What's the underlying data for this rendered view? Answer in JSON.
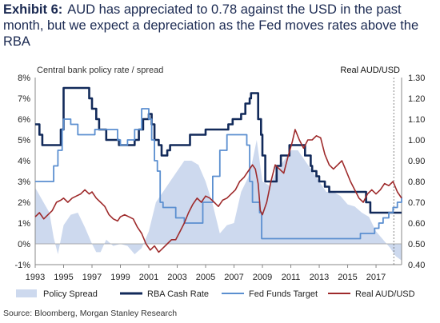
{
  "header": {
    "exhibit": "Exhibit 6:",
    "title": "AUD has appreciated to 0.78 against the USD in the past month, but we expect a depreciation as the Fed moves rates above the RBA"
  },
  "source": "Source: Bloomberg, Morgan Stanley Research",
  "chart_data": {
    "type": "line",
    "ylabel_left": "Central bank policy rate / spread",
    "ylabel_right": "Real AUD/USD",
    "x_ticks": [
      "1993",
      "1995",
      "1997",
      "1999",
      "2001",
      "2003",
      "2005",
      "2007",
      "2009",
      "2011",
      "2013",
      "2015",
      "2017"
    ],
    "xlim": [
      1993,
      2018.8
    ],
    "ylim_left": [
      -1,
      8
    ],
    "ylim_right": [
      0.4,
      1.3
    ],
    "y_ticks_left": [
      "8%",
      "7%",
      "6%",
      "5%",
      "4%",
      "3%",
      "2%",
      "1%",
      "0%",
      "-1%"
    ],
    "y_ticks_right": [
      "1.30",
      "1.20",
      "1.10",
      "1.00",
      "0.90",
      "0.80",
      "0.70",
      "0.60",
      "0.50",
      "0.40"
    ],
    "legend": [
      "Policy Spread",
      "RBA Cash Rate",
      "Fed Funds Target",
      "Real AUD/USD"
    ],
    "legend_position": "bottom",
    "colors": {
      "policy_spread": "#cdd9ee",
      "rba_cash_rate": "#122a5a",
      "fed_funds": "#5b8fd0",
      "real_aud": "#9e2a2b"
    },
    "series": [
      {
        "name": "Policy Spread",
        "axis": "left",
        "style": "area",
        "x": [
          1993.0,
          1993.5,
          1994.0,
          1994.3,
          1994.6,
          1995.0,
          1995.5,
          1996.0,
          1996.5,
          1997.0,
          1997.3,
          1997.6,
          1998.0,
          1998.5,
          1999.0,
          1999.5,
          2000.0,
          2000.5,
          2001.0,
          2001.5,
          2002.0,
          2002.5,
          2003.0,
          2003.5,
          2004.0,
          2004.5,
          2005.0,
          2005.5,
          2006.0,
          2006.5,
          2007.0,
          2007.5,
          2008.0,
          2008.3,
          2008.6,
          2009.0,
          2009.5,
          2010.0,
          2010.5,
          2011.0,
          2011.5,
          2012.0,
          2012.5,
          2013.0,
          2013.5,
          2014.0,
          2014.5,
          2015.0,
          2015.5,
          2016.0,
          2016.5,
          2017.0,
          2017.5,
          2018.0,
          2018.4,
          2018.8
        ],
        "values": [
          2.7,
          2.1,
          1.5,
          0.3,
          -0.5,
          0.9,
          1.4,
          1.5,
          0.8,
          0.0,
          -0.4,
          -0.4,
          0.2,
          -0.1,
          0.0,
          -0.1,
          -0.5,
          -0.2,
          0.6,
          2.0,
          2.5,
          3.0,
          3.5,
          4.0,
          4.0,
          3.8,
          3.0,
          1.9,
          0.5,
          0.9,
          1.0,
          2.5,
          3.2,
          4.0,
          5.0,
          3.0,
          2.8,
          3.5,
          4.0,
          4.5,
          4.5,
          4.0,
          3.5,
          3.0,
          2.5,
          2.5,
          2.3,
          1.9,
          1.8,
          1.5,
          1.3,
          0.6,
          0.2,
          -0.2,
          -0.6,
          -0.8
        ]
      },
      {
        "name": "RBA Cash Rate",
        "axis": "left",
        "style": "line",
        "x": [
          1993.0,
          1993.3,
          1993.5,
          1994.5,
          1994.8,
          1995.0,
          1996.5,
          1996.8,
          1997.0,
          1997.3,
          1997.5,
          1998.0,
          1998.9,
          1999.0,
          1999.9,
          2000.0,
          2000.3,
          2000.6,
          2001.0,
          2001.2,
          2001.4,
          2001.7,
          2001.9,
          2002.3,
          2002.5,
          2003.8,
          2003.9,
          2005.0,
          2006.4,
          2006.6,
          2006.9,
          2007.5,
          2007.8,
          2008.1,
          2008.2,
          2008.5,
          2008.7,
          2008.9,
          2009.0,
          2009.2,
          2009.8,
          2010.0,
          2010.3,
          2010.9,
          2011.8,
          2012.0,
          2012.4,
          2012.5,
          2012.8,
          2013.0,
          2013.4,
          2013.7,
          2016.3,
          2016.6,
          2018.8
        ],
        "values": [
          5.75,
          5.25,
          4.75,
          4.75,
          5.5,
          7.5,
          7.5,
          7.0,
          6.5,
          6.0,
          5.5,
          5.0,
          4.75,
          4.75,
          4.75,
          5.0,
          5.5,
          6.0,
          6.25,
          5.75,
          5.0,
          4.75,
          4.25,
          4.5,
          4.75,
          4.75,
          5.25,
          5.5,
          5.5,
          5.75,
          6.0,
          6.25,
          6.75,
          7.0,
          7.25,
          7.25,
          6.0,
          5.25,
          4.25,
          3.0,
          3.0,
          3.75,
          4.25,
          4.75,
          4.75,
          4.25,
          3.75,
          3.5,
          3.25,
          3.0,
          2.75,
          2.5,
          2.0,
          1.5,
          1.5
        ]
      },
      {
        "name": "Fed Funds Target",
        "axis": "left",
        "style": "line",
        "x": [
          1993.0,
          1994.0,
          1994.3,
          1994.6,
          1994.9,
          1995.0,
          1995.5,
          1996.0,
          1997.0,
          1997.2,
          1998.6,
          1998.8,
          1999.0,
          1999.5,
          2000.0,
          2000.5,
          2001.0,
          2001.2,
          2001.4,
          2001.6,
          2001.8,
          2002.0,
          2002.9,
          2003.5,
          2004.4,
          2004.8,
          2005.5,
          2006.0,
          2006.5,
          2007.6,
          2007.9,
          2008.1,
          2008.3,
          2008.8,
          2008.95,
          2015.9,
          2016.9,
          2017.2,
          2017.5,
          2017.9,
          2018.2,
          2018.5,
          2018.8
        ],
        "values": [
          3.0,
          3.0,
          3.75,
          4.5,
          5.5,
          6.0,
          5.75,
          5.25,
          5.25,
          5.5,
          5.5,
          5.0,
          4.75,
          5.0,
          5.5,
          6.5,
          6.0,
          5.0,
          4.0,
          3.5,
          2.0,
          1.75,
          1.25,
          1.0,
          1.0,
          2.0,
          3.25,
          4.5,
          5.25,
          5.25,
          4.75,
          3.0,
          2.0,
          1.5,
          0.25,
          0.5,
          0.75,
          1.0,
          1.25,
          1.5,
          1.75,
          2.0,
          2.25
        ]
      },
      {
        "name": "Real AUD/USD",
        "axis": "right",
        "style": "line",
        "x": [
          1993.0,
          1993.3,
          1993.6,
          1993.9,
          1994.2,
          1994.5,
          1994.8,
          1995.0,
          1995.3,
          1995.6,
          1995.9,
          1996.2,
          1996.5,
          1996.8,
          1997.0,
          1997.3,
          1997.6,
          1997.9,
          1998.2,
          1998.5,
          1998.8,
          1999.0,
          1999.3,
          1999.6,
          1999.9,
          2000.2,
          2000.5,
          2000.8,
          2001.1,
          2001.4,
          2001.7,
          2002.0,
          2002.3,
          2002.6,
          2002.9,
          2003.2,
          2003.5,
          2003.8,
          2004.1,
          2004.4,
          2004.7,
          2005.0,
          2005.3,
          2005.6,
          2005.9,
          2006.2,
          2006.5,
          2006.8,
          2007.1,
          2007.4,
          2007.7,
          2008.0,
          2008.3,
          2008.5,
          2008.7,
          2008.85,
          2009.0,
          2009.3,
          2009.6,
          2009.9,
          2010.2,
          2010.5,
          2010.8,
          2011.1,
          2011.3,
          2011.6,
          2011.9,
          2012.2,
          2012.5,
          2012.8,
          2013.1,
          2013.4,
          2013.7,
          2014.0,
          2014.3,
          2014.6,
          2014.9,
          2015.2,
          2015.5,
          2015.8,
          2016.1,
          2016.4,
          2016.7,
          2017.0,
          2017.3,
          2017.6,
          2017.9,
          2018.2,
          2018.5,
          2018.8
        ],
        "values": [
          0.63,
          0.65,
          0.62,
          0.64,
          0.66,
          0.7,
          0.71,
          0.72,
          0.7,
          0.72,
          0.73,
          0.74,
          0.76,
          0.74,
          0.75,
          0.72,
          0.7,
          0.68,
          0.64,
          0.62,
          0.61,
          0.63,
          0.64,
          0.63,
          0.62,
          0.58,
          0.55,
          0.5,
          0.47,
          0.49,
          0.46,
          0.48,
          0.5,
          0.52,
          0.52,
          0.56,
          0.6,
          0.65,
          0.69,
          0.72,
          0.7,
          0.73,
          0.72,
          0.7,
          0.68,
          0.71,
          0.72,
          0.74,
          0.76,
          0.8,
          0.82,
          0.85,
          0.88,
          0.86,
          0.79,
          0.66,
          0.64,
          0.7,
          0.8,
          0.88,
          0.86,
          0.84,
          0.92,
          0.99,
          1.05,
          1.0,
          0.96,
          1.0,
          1.0,
          1.02,
          1.01,
          0.93,
          0.88,
          0.86,
          0.88,
          0.9,
          0.85,
          0.8,
          0.76,
          0.72,
          0.7,
          0.74,
          0.76,
          0.74,
          0.76,
          0.79,
          0.78,
          0.8,
          0.75,
          0.72
        ]
      }
    ]
  }
}
